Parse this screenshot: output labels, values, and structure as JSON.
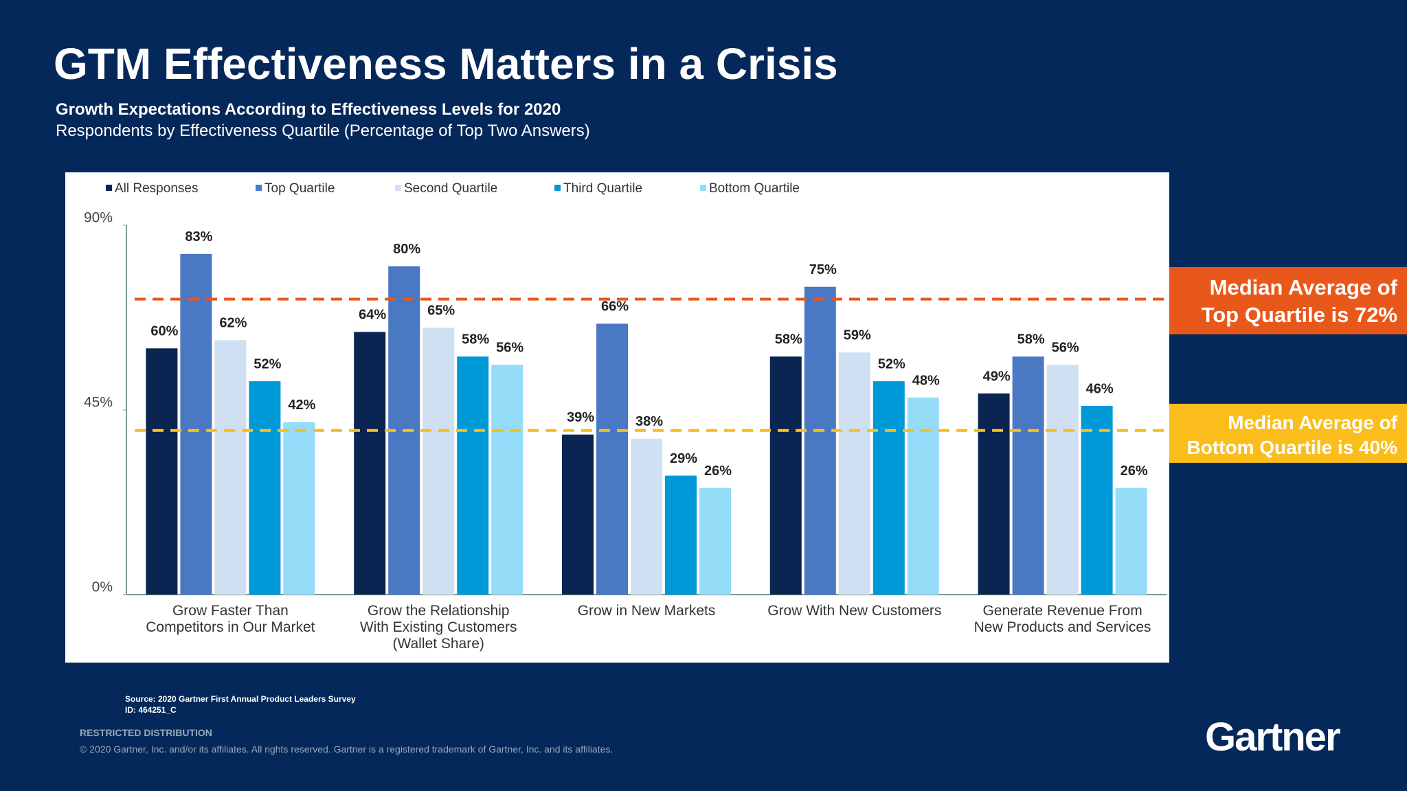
{
  "slide": {
    "heading": "GTM Effectiveness Matters in a Crisis"
  },
  "chart_data": {
    "type": "bar",
    "title": "Growth Expectations According to Effectiveness Levels for 2020",
    "subtitle": "Respondents by Effectiveness Quartile (Percentage of Top Two Answers)",
    "categories": [
      "Grow Faster Than\nCompetitors in Our Market",
      "Grow the Relationship\nWith Existing Customers\n(Wallet Share)",
      "Grow in New Markets",
      "Grow With New Customers",
      "Generate Revenue From\nNew Products and Services"
    ],
    "series": [
      {
        "name": "All Responses",
        "color": "#0b2552",
        "values": [
          60,
          64,
          39,
          58,
          49
        ],
        "value_labels": [
          "60%",
          "64%",
          "39%",
          "58%",
          "49%"
        ]
      },
      {
        "name": "Top Quartile",
        "color": "#4a78c2",
        "values": [
          83,
          80,
          66,
          75,
          58
        ],
        "value_labels": [
          "83%",
          "80%",
          "66%",
          "75%",
          "58%"
        ]
      },
      {
        "name": "Second Quartile",
        "color": "#cfe0f3",
        "values": [
          62,
          65,
          38,
          59,
          56
        ],
        "value_labels": [
          "62%",
          "65%",
          "38%",
          "59%",
          "56%"
        ]
      },
      {
        "name": "Third Quartile",
        "color": "#0099d8",
        "values": [
          52,
          58,
          29,
          52,
          46
        ],
        "value_labels": [
          "52%",
          "58%",
          "29%",
          "52%",
          "46%"
        ]
      },
      {
        "name": "Bottom Quartile",
        "color": "#94dcf7",
        "values": [
          42,
          56,
          26,
          48,
          26
        ],
        "value_labels": [
          "42%",
          "56%",
          "26%",
          "48%",
          "26%"
        ]
      }
    ],
    "ylim": [
      0,
      90
    ],
    "yticks": [
      {
        "value": 0,
        "label": "0%"
      },
      {
        "value": 45,
        "label": "45%"
      },
      {
        "value": 90,
        "label": "90%"
      }
    ],
    "legend": "top",
    "reference_lines": [
      {
        "value": 72,
        "color": "#e8581b",
        "label": "Median Average of\nTop Quartile is 72%"
      },
      {
        "value": 40,
        "color": "#fbbd1b",
        "label": "Median Average of\nBottom Quartile is 40%"
      }
    ]
  },
  "footer": {
    "source": "Source: 2020 Gartner First Annual Product Leaders Survey",
    "id": "ID: 464251_C",
    "distribution": "RESTRICTED DISTRIBUTION",
    "copyright": "© 2020 Gartner, Inc. and/or its affiliates. All rights reserved. Gartner is a registered trademark of Gartner, Inc. and its affiliates.",
    "logo": "Gartner"
  }
}
